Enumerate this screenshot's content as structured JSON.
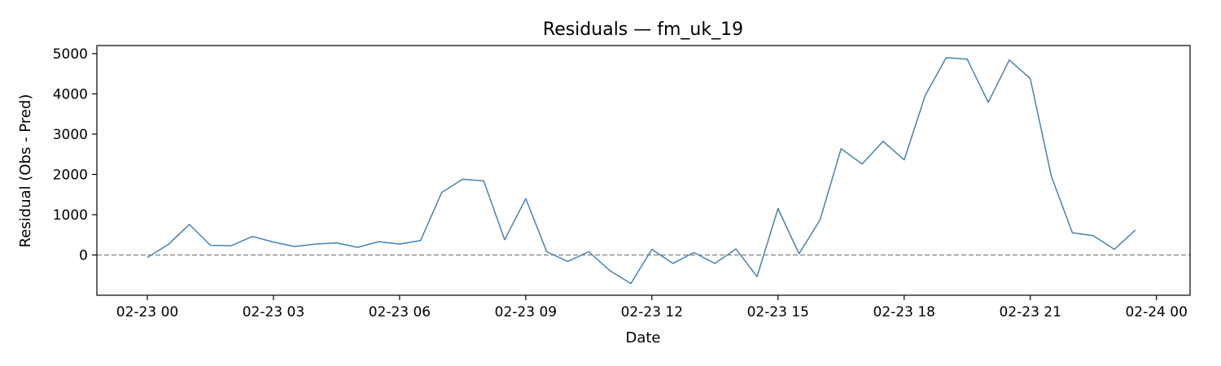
{
  "chart_data": {
    "type": "line",
    "title": "Residuals — fm_uk_19",
    "xlabel": "Date",
    "ylabel": "Residual (Obs - Pred)",
    "x_tick_labels": [
      "02-23 00",
      "02-23 03",
      "02-23 06",
      "02-23 09",
      "02-23 12",
      "02-23 15",
      "02-23 18",
      "02-23 21",
      "02-24 00"
    ],
    "y_tick_labels": [
      "0",
      "1000",
      "2000",
      "3000",
      "4000",
      "5000"
    ],
    "ylim": [
      -1000,
      5200
    ],
    "xlim": [
      "2024-02-22T22:48",
      "2024-02-24T00:48"
    ],
    "grid": false,
    "reference_line": {
      "y": 0,
      "style": "dashed",
      "color": "#808080"
    },
    "series": [
      {
        "color": "#4682b4",
        "x": [
          "2024-02-23T00:00",
          "2024-02-23T00:30",
          "2024-02-23T01:00",
          "2024-02-23T01:30",
          "2024-02-23T02:00",
          "2024-02-23T02:30",
          "2024-02-23T03:00",
          "2024-02-23T03:30",
          "2024-02-23T04:00",
          "2024-02-23T04:30",
          "2024-02-23T05:00",
          "2024-02-23T05:30",
          "2024-02-23T06:00",
          "2024-02-23T06:30",
          "2024-02-23T07:00",
          "2024-02-23T07:30",
          "2024-02-23T08:00",
          "2024-02-23T08:30",
          "2024-02-23T09:00",
          "2024-02-23T09:30",
          "2024-02-23T10:00",
          "2024-02-23T10:30",
          "2024-02-23T11:00",
          "2024-02-23T11:30",
          "2024-02-23T12:00",
          "2024-02-23T12:30",
          "2024-02-23T13:00",
          "2024-02-23T13:30",
          "2024-02-23T14:00",
          "2024-02-23T14:30",
          "2024-02-23T15:00",
          "2024-02-23T15:30",
          "2024-02-23T16:00",
          "2024-02-23T16:30",
          "2024-02-23T17:00",
          "2024-02-23T17:30",
          "2024-02-23T18:00",
          "2024-02-23T18:30",
          "2024-02-23T19:00",
          "2024-02-23T19:30",
          "2024-02-23T20:00",
          "2024-02-23T20:30",
          "2024-02-23T21:00",
          "2024-02-23T21:30",
          "2024-02-23T22:00",
          "2024-02-23T22:30",
          "2024-02-23T23:00",
          "2024-02-23T23:30"
        ],
        "values": [
          -60,
          260,
          760,
          240,
          230,
          460,
          320,
          210,
          270,
          300,
          190,
          330,
          270,
          360,
          1550,
          1880,
          1840,
          380,
          1400,
          80,
          -160,
          80,
          -390,
          -710,
          140,
          -210,
          60,
          -210,
          150,
          -540,
          1150,
          30,
          870,
          2640,
          2260,
          2820,
          2360,
          3960,
          4900,
          4860,
          3790,
          4840,
          4380,
          1960,
          550,
          480,
          140,
          620
        ]
      }
    ]
  }
}
